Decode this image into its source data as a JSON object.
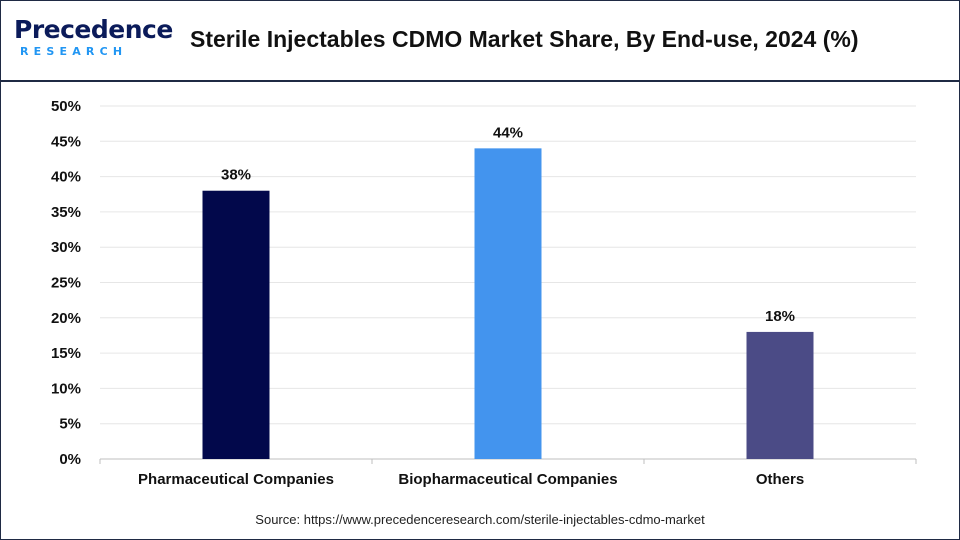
{
  "header": {
    "logo_text_top": "Precedence",
    "logo_text_bottom": "RESEARCH",
    "title": "Sterile Injectables CDMO Market Share, By End-use, 2024 (%)"
  },
  "footer": {
    "source": "Source: https://www.precedenceresearch.com/sterile-injectables-cdmo-market"
  },
  "colors": {
    "frame": "#1f2a44",
    "grid": "#e6e6e6",
    "axis": "#bfbfbf",
    "bars": [
      "#02084b",
      "#4394ee",
      "#4b4b86"
    ]
  },
  "chart_data": {
    "type": "bar",
    "title": "Sterile Injectables CDMO Market Share, By End-use, 2024 (%)",
    "categories": [
      "Pharmaceutical Companies",
      "Biopharmaceutical Companies",
      "Others"
    ],
    "values": [
      38,
      44,
      18
    ],
    "data_labels": [
      "38%",
      "44%",
      "18%"
    ],
    "ylim": [
      0,
      50
    ],
    "yticks": [
      0,
      5,
      10,
      15,
      20,
      25,
      30,
      35,
      40,
      45,
      50
    ],
    "ytick_labels": [
      "0%",
      "5%",
      "10%",
      "15%",
      "20%",
      "25%",
      "30%",
      "35%",
      "40%",
      "45%",
      "50%"
    ],
    "xlabel": "",
    "ylabel": "",
    "grid": true,
    "legend": "none"
  }
}
